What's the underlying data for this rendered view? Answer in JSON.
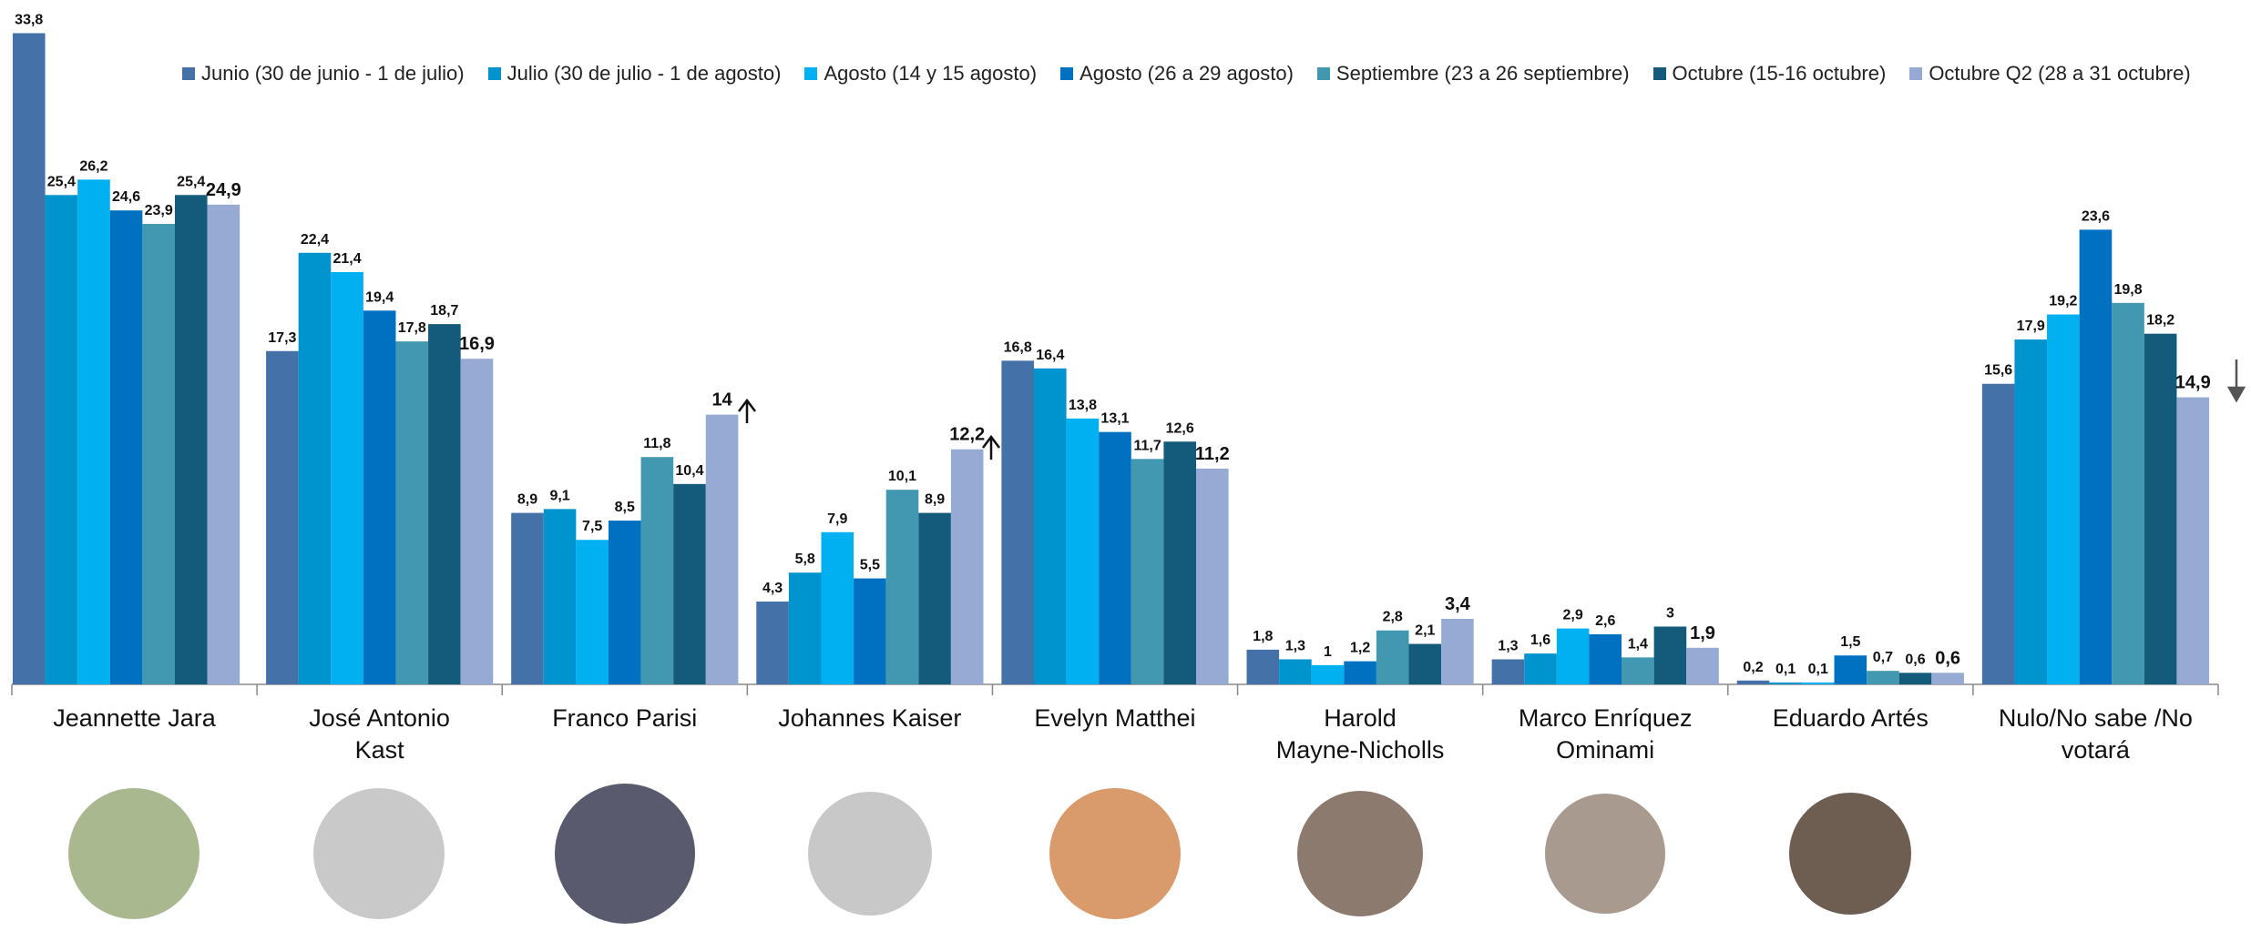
{
  "chart_data": {
    "type": "bar",
    "categories": [
      "Jeannette Jara",
      "José Antonio\nKast",
      "Franco Parisi",
      "Johannes Kaiser",
      "Evelyn Matthei",
      "Harold\nMayne-Nicholls",
      "Marco Enríquez\nOminami",
      "Eduardo Artés",
      "Nulo/No sabe /No\nvotará"
    ],
    "series": [
      {
        "name": "Junio (30 de junio - 1 de julio)",
        "color": "#4472a8",
        "values": [
          33.8,
          17.3,
          8.9,
          4.3,
          16.8,
          1.8,
          1.3,
          0.2,
          15.6
        ],
        "value_labels": [
          "33,8",
          "17,3",
          "8,9",
          "4,3",
          "16,8",
          "1,8",
          "1,3",
          "0,2",
          "15,6"
        ]
      },
      {
        "name": "Julio (30 de julio - 1 de agosto)",
        "color": "#0094cf",
        "values": [
          25.4,
          22.4,
          9.1,
          5.8,
          16.4,
          1.3,
          1.6,
          0.1,
          17.9
        ],
        "value_labels": [
          "25,4",
          "22,4",
          "9,1",
          "5,8",
          "16,4",
          "1,3",
          "1,6",
          "0,1",
          "17,9"
        ]
      },
      {
        "name": "Agosto (14 y 15 agosto)",
        "color": "#00b0f0",
        "values": [
          26.2,
          21.4,
          7.5,
          7.9,
          13.8,
          1,
          2.9,
          0.1,
          19.2
        ],
        "value_labels": [
          "26,2",
          "21,4",
          "7,5",
          "7,9",
          "13,8",
          "1",
          "2,9",
          "0,1",
          "19,2"
        ]
      },
      {
        "name": "Agosto (26 a 29 agosto)",
        "color": "#0070c0",
        "values": [
          24.6,
          19.4,
          8.5,
          5.5,
          13.1,
          1.2,
          2.6,
          1.5,
          23.6
        ],
        "value_labels": [
          "24,6",
          "19,4",
          "8,5",
          "5,5",
          "13,1",
          "1,2",
          "2,6",
          "1,5",
          "23,6"
        ]
      },
      {
        "name": "Septiembre (23 a 26 septiembre)",
        "color": "#4198b0",
        "values": [
          23.9,
          17.8,
          11.8,
          10.1,
          11.7,
          2.8,
          1.4,
          0.7,
          19.8
        ],
        "value_labels": [
          "23,9",
          "17,8",
          "11,8",
          "10,1",
          "11,7",
          "2,8",
          "1,4",
          "0,7",
          "19,8"
        ]
      },
      {
        "name": "Octubre (15-16 octubre)",
        "color": "#145a7a",
        "values": [
          25.4,
          18.7,
          10.4,
          8.9,
          12.6,
          2.1,
          3,
          0.6,
          18.2
        ],
        "value_labels": [
          "25,4",
          "18,7",
          "10,4",
          "8,9",
          "12,6",
          "2,1",
          "3",
          "0,6",
          "18,2"
        ]
      },
      {
        "name": "Octubre Q2 (28 a 31 octubre)",
        "color": "#97aad4",
        "values": [
          24.9,
          16.9,
          14,
          12.2,
          11.2,
          3.4,
          1.9,
          0.6,
          14.9
        ],
        "value_labels": [
          "24,9",
          "16,9",
          "14",
          "12,2",
          "11,2",
          "3,4",
          "1,9",
          "0,6",
          "14,9"
        ]
      }
    ]
  }
}
